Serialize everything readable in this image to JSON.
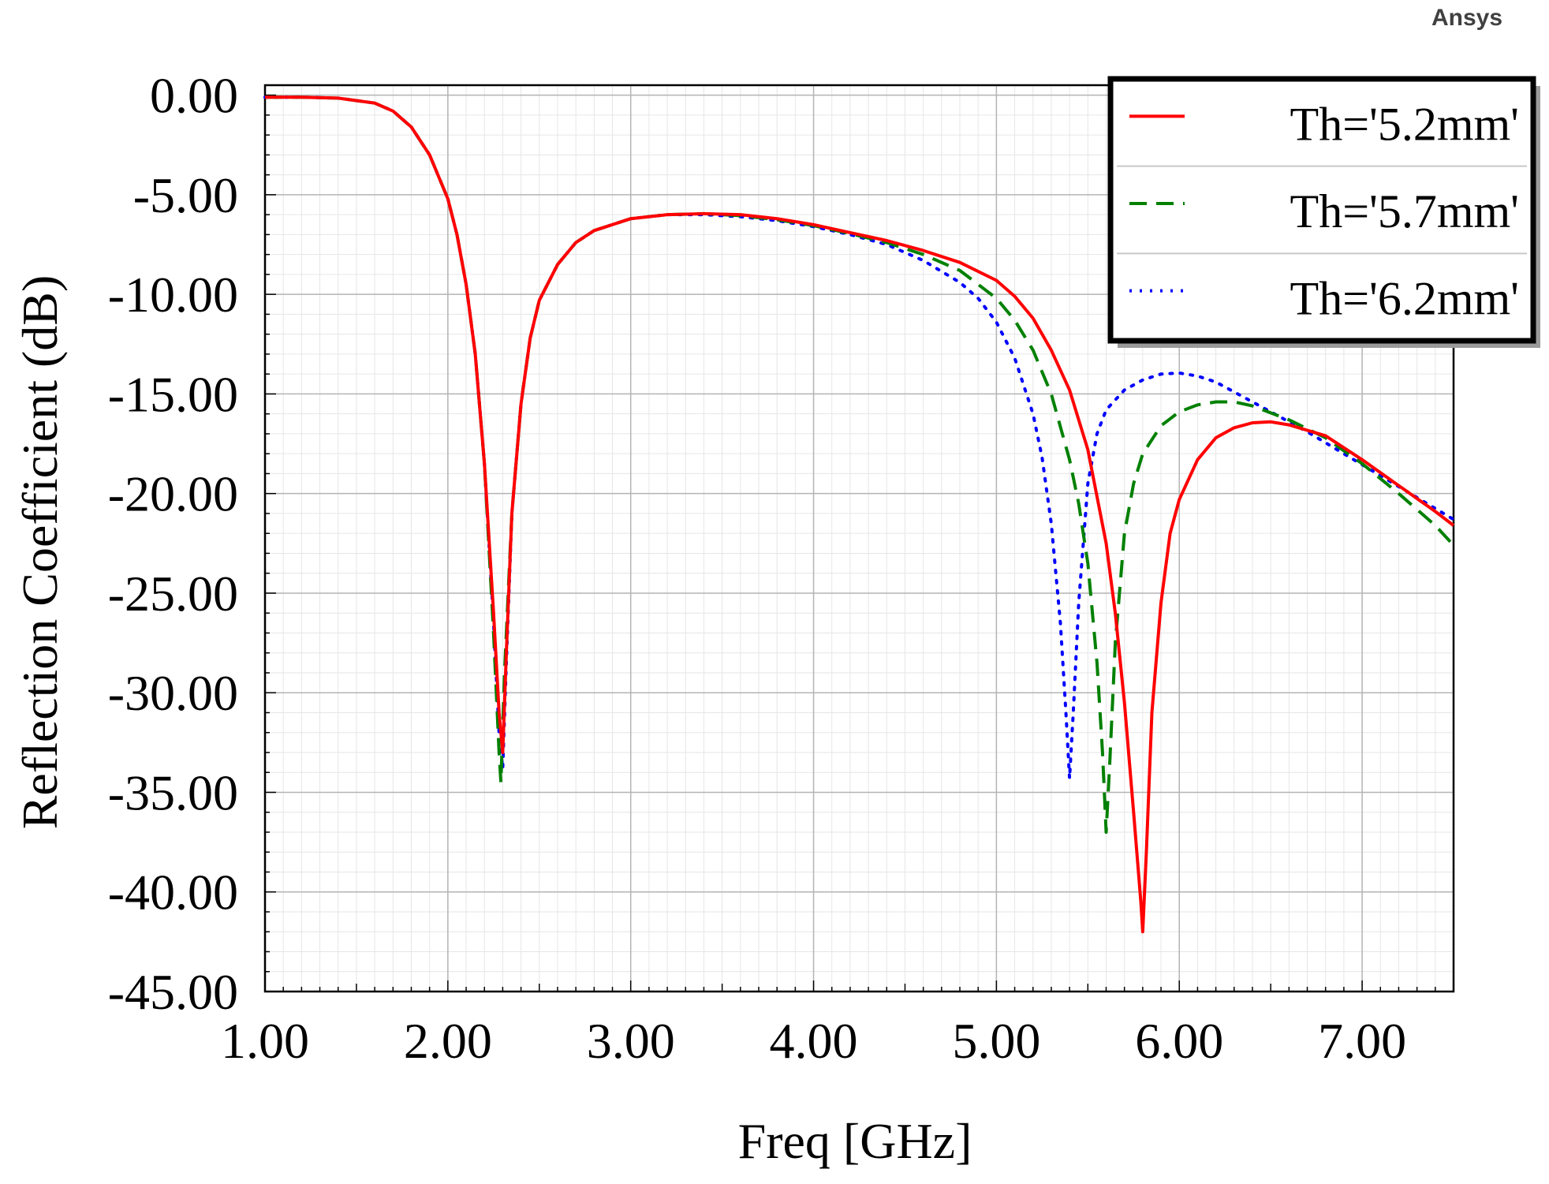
{
  "brand": "Ansys",
  "chart_data": {
    "type": "line",
    "title": "",
    "xlabel": "Freq [GHz]",
    "ylabel": "Reflection Coefficient (dB)",
    "xlim": [
      1.0,
      7.5
    ],
    "ylim": [
      -45.0,
      0.5
    ],
    "x_ticks": [
      1,
      2,
      3,
      4,
      5,
      6,
      7
    ],
    "x_tick_labels": [
      "1.00",
      "2.00",
      "3.00",
      "4.00",
      "5.00",
      "6.00",
      "7.00"
    ],
    "y_ticks": [
      0,
      -5,
      -10,
      -15,
      -20,
      -25,
      -30,
      -35,
      -40,
      -45
    ],
    "y_tick_labels": [
      "0.00",
      "-5.00",
      "-10.00",
      "-15.00",
      "-20.00",
      "-25.00",
      "-30.00",
      "-35.00",
      "-40.00",
      "-45.00"
    ],
    "grid": true,
    "legend_position": "top-right",
    "series": [
      {
        "name": "Th='5.2mm'",
        "color": "#ff0000",
        "dash": "solid",
        "points": [
          [
            1.0,
            -0.1
          ],
          [
            1.2,
            -0.1
          ],
          [
            1.4,
            -0.15
          ],
          [
            1.6,
            -0.4
          ],
          [
            1.7,
            -0.8
          ],
          [
            1.8,
            -1.6
          ],
          [
            1.9,
            -3.0
          ],
          [
            2.0,
            -5.2
          ],
          [
            2.05,
            -7.0
          ],
          [
            2.1,
            -9.5
          ],
          [
            2.15,
            -13.0
          ],
          [
            2.2,
            -18.5
          ],
          [
            2.25,
            -26.0
          ],
          [
            2.28,
            -31.0
          ],
          [
            2.3,
            -33.0
          ],
          [
            2.32,
            -28.0
          ],
          [
            2.35,
            -21.0
          ],
          [
            2.4,
            -15.5
          ],
          [
            2.45,
            -12.2
          ],
          [
            2.5,
            -10.3
          ],
          [
            2.6,
            -8.5
          ],
          [
            2.7,
            -7.4
          ],
          [
            2.8,
            -6.8
          ],
          [
            3.0,
            -6.2
          ],
          [
            3.2,
            -6.0
          ],
          [
            3.4,
            -5.95
          ],
          [
            3.6,
            -6.0
          ],
          [
            3.8,
            -6.2
          ],
          [
            4.0,
            -6.5
          ],
          [
            4.2,
            -6.9
          ],
          [
            4.4,
            -7.3
          ],
          [
            4.6,
            -7.8
          ],
          [
            4.8,
            -8.4
          ],
          [
            5.0,
            -9.3
          ],
          [
            5.1,
            -10.1
          ],
          [
            5.2,
            -11.2
          ],
          [
            5.3,
            -12.8
          ],
          [
            5.4,
            -14.8
          ],
          [
            5.5,
            -17.8
          ],
          [
            5.6,
            -22.5
          ],
          [
            5.65,
            -26.0
          ],
          [
            5.7,
            -30.5
          ],
          [
            5.75,
            -36.0
          ],
          [
            5.79,
            -40.5
          ],
          [
            5.8,
            -42.0
          ],
          [
            5.82,
            -38.0
          ],
          [
            5.85,
            -31.0
          ],
          [
            5.9,
            -25.5
          ],
          [
            5.95,
            -22.0
          ],
          [
            6.0,
            -20.3
          ],
          [
            6.1,
            -18.3
          ],
          [
            6.2,
            -17.2
          ],
          [
            6.3,
            -16.7
          ],
          [
            6.4,
            -16.45
          ],
          [
            6.5,
            -16.4
          ],
          [
            6.6,
            -16.55
          ],
          [
            6.8,
            -17.1
          ],
          [
            7.0,
            -18.3
          ],
          [
            7.2,
            -19.6
          ],
          [
            7.4,
            -20.9
          ],
          [
            7.5,
            -21.6
          ]
        ]
      },
      {
        "name": "Th='5.7mm'",
        "color": "#008000",
        "dash": "dashed",
        "points": [
          [
            1.0,
            -0.1
          ],
          [
            1.2,
            -0.1
          ],
          [
            1.4,
            -0.15
          ],
          [
            1.6,
            -0.4
          ],
          [
            1.7,
            -0.8
          ],
          [
            1.8,
            -1.6
          ],
          [
            1.9,
            -3.0
          ],
          [
            2.0,
            -5.2
          ],
          [
            2.05,
            -7.0
          ],
          [
            2.1,
            -9.5
          ],
          [
            2.15,
            -13.0
          ],
          [
            2.2,
            -18.5
          ],
          [
            2.25,
            -27.0
          ],
          [
            2.28,
            -33.0
          ],
          [
            2.29,
            -34.5
          ],
          [
            2.31,
            -29.0
          ],
          [
            2.35,
            -21.0
          ],
          [
            2.4,
            -15.5
          ],
          [
            2.45,
            -12.2
          ],
          [
            2.5,
            -10.3
          ],
          [
            2.6,
            -8.5
          ],
          [
            2.7,
            -7.4
          ],
          [
            2.8,
            -6.8
          ],
          [
            3.0,
            -6.2
          ],
          [
            3.2,
            -6.0
          ],
          [
            3.4,
            -5.95
          ],
          [
            3.6,
            -6.05
          ],
          [
            3.8,
            -6.25
          ],
          [
            4.0,
            -6.55
          ],
          [
            4.2,
            -6.95
          ],
          [
            4.4,
            -7.4
          ],
          [
            4.6,
            -8.0
          ],
          [
            4.8,
            -8.8
          ],
          [
            5.0,
            -10.2
          ],
          [
            5.1,
            -11.3
          ],
          [
            5.2,
            -12.8
          ],
          [
            5.3,
            -15.0
          ],
          [
            5.4,
            -18.3
          ],
          [
            5.45,
            -20.5
          ],
          [
            5.5,
            -23.5
          ],
          [
            5.55,
            -28.5
          ],
          [
            5.58,
            -33.0
          ],
          [
            5.6,
            -37.0
          ],
          [
            5.62,
            -33.5
          ],
          [
            5.65,
            -27.5
          ],
          [
            5.7,
            -22.0
          ],
          [
            5.75,
            -19.5
          ],
          [
            5.8,
            -18.0
          ],
          [
            5.9,
            -16.6
          ],
          [
            6.0,
            -15.9
          ],
          [
            6.1,
            -15.55
          ],
          [
            6.2,
            -15.4
          ],
          [
            6.3,
            -15.4
          ],
          [
            6.4,
            -15.6
          ],
          [
            6.6,
            -16.3
          ],
          [
            6.8,
            -17.2
          ],
          [
            7.0,
            -18.5
          ],
          [
            7.2,
            -20.0
          ],
          [
            7.4,
            -21.6
          ],
          [
            7.5,
            -22.6
          ]
        ]
      },
      {
        "name": "Th='6.2mm'",
        "color": "#0000ff",
        "dash": "dotted",
        "points": [
          [
            1.0,
            -0.1
          ],
          [
            1.2,
            -0.1
          ],
          [
            1.4,
            -0.15
          ],
          [
            1.6,
            -0.4
          ],
          [
            1.7,
            -0.8
          ],
          [
            1.8,
            -1.6
          ],
          [
            1.9,
            -3.0
          ],
          [
            2.0,
            -5.2
          ],
          [
            2.05,
            -7.0
          ],
          [
            2.1,
            -9.5
          ],
          [
            2.15,
            -13.0
          ],
          [
            2.2,
            -18.5
          ],
          [
            2.25,
            -26.5
          ],
          [
            2.28,
            -32.0
          ],
          [
            2.3,
            -33.8
          ],
          [
            2.32,
            -28.5
          ],
          [
            2.35,
            -21.0
          ],
          [
            2.4,
            -15.5
          ],
          [
            2.45,
            -12.2
          ],
          [
            2.5,
            -10.3
          ],
          [
            2.6,
            -8.5
          ],
          [
            2.7,
            -7.4
          ],
          [
            2.8,
            -6.8
          ],
          [
            3.0,
            -6.2
          ],
          [
            3.2,
            -6.0
          ],
          [
            3.4,
            -6.0
          ],
          [
            3.6,
            -6.1
          ],
          [
            3.8,
            -6.3
          ],
          [
            4.0,
            -6.6
          ],
          [
            4.2,
            -7.0
          ],
          [
            4.4,
            -7.5
          ],
          [
            4.6,
            -8.3
          ],
          [
            4.8,
            -9.4
          ],
          [
            4.9,
            -10.2
          ],
          [
            5.0,
            -11.4
          ],
          [
            5.1,
            -13.2
          ],
          [
            5.2,
            -16.0
          ],
          [
            5.25,
            -18.2
          ],
          [
            5.3,
            -21.5
          ],
          [
            5.35,
            -26.5
          ],
          [
            5.38,
            -31.0
          ],
          [
            5.4,
            -34.3
          ],
          [
            5.42,
            -31.0
          ],
          [
            5.45,
            -25.5
          ],
          [
            5.5,
            -19.5
          ],
          [
            5.55,
            -17.0
          ],
          [
            5.6,
            -15.8
          ],
          [
            5.7,
            -14.8
          ],
          [
            5.8,
            -14.3
          ],
          [
            5.9,
            -14.0
          ],
          [
            6.0,
            -13.95
          ],
          [
            6.1,
            -14.1
          ],
          [
            6.2,
            -14.4
          ],
          [
            6.3,
            -14.9
          ],
          [
            6.5,
            -15.9
          ],
          [
            6.7,
            -16.9
          ],
          [
            6.9,
            -18.0
          ],
          [
            7.1,
            -19.1
          ],
          [
            7.3,
            -20.2
          ],
          [
            7.5,
            -21.3
          ]
        ]
      }
    ]
  }
}
